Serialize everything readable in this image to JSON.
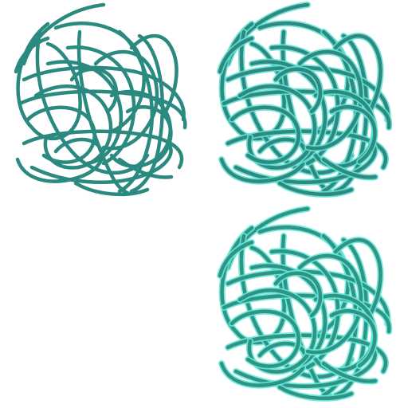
{
  "scribbles": [
    {
      "id": "scribble-1",
      "variant": "plain",
      "stroke_color": "#2a8a7f",
      "glow_color": null
    },
    {
      "id": "scribble-2",
      "variant": "glow",
      "stroke_color": "#2e8a80",
      "glow_color": "#5fe0d0"
    },
    {
      "id": "scribble-3",
      "variant": "glow",
      "stroke_color": "#2f9486",
      "glow_color": "#66e8d6"
    }
  ],
  "empty_cell": {
    "background": "#ffffff"
  }
}
